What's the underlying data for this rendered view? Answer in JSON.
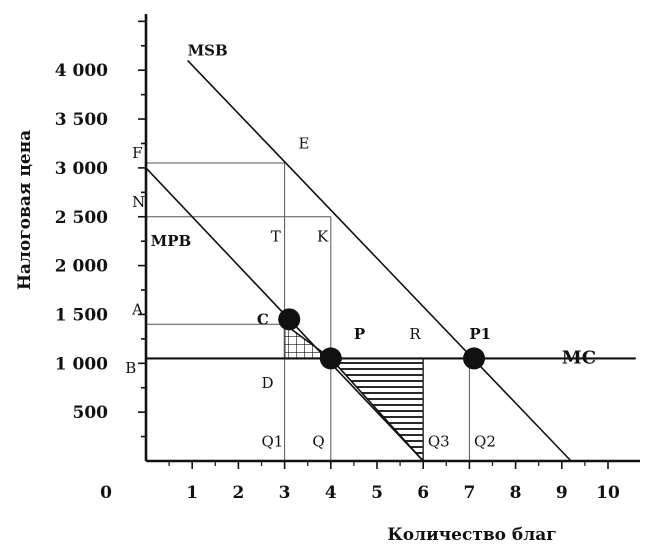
{
  "chart_data": {
    "type": "line",
    "xlabel": "Количество благ",
    "ylabel": "Налоговая цена",
    "origin_label": "0",
    "x_ticks": [
      "1",
      "2",
      "3",
      "4",
      "5",
      "6",
      "7",
      "8",
      "9",
      "10"
    ],
    "y_ticks": [
      {
        "value": 500,
        "label": "500"
      },
      {
        "value": 1000,
        "label": "1 000"
      },
      {
        "value": 1500,
        "label": "1 500"
      },
      {
        "value": 2000,
        "label": "2 000"
      },
      {
        "value": 2500,
        "label": "2 500"
      },
      {
        "value": 3000,
        "label": "3 000"
      },
      {
        "value": 3500,
        "label": "3 500"
      },
      {
        "value": 4000,
        "label": "4 000"
      }
    ],
    "xlim": [
      0,
      11
    ],
    "ylim": [
      0,
      5000
    ],
    "series": [
      {
        "name": "MSB",
        "x": [
          0.9,
          9.2
        ],
        "y": [
          4100,
          0
        ]
      },
      {
        "name": "MPB",
        "x": [
          0,
          6
        ],
        "y": [
          3000,
          0
        ]
      },
      {
        "name": "MC",
        "x": [
          0,
          10.6
        ],
        "y": [
          1050,
          1050
        ]
      }
    ],
    "price_lines": [
      {
        "y": 3050,
        "x_end": 3
      },
      {
        "y": 2500,
        "x_end": 4
      },
      {
        "y": 1400,
        "x_end": 3
      }
    ],
    "quantity_lines": [
      {
        "x": 3,
        "y_top": 3050
      },
      {
        "x": 4,
        "y_top": 2500
      },
      {
        "x": 6,
        "y_top": 1050
      },
      {
        "x": 7,
        "y_top": 1050
      }
    ],
    "markers": [
      {
        "x": 3.1,
        "y": 1450
      },
      {
        "x": 4,
        "y": 1050
      },
      {
        "x": 7.1,
        "y": 1050
      }
    ],
    "point_labels": [
      {
        "text": "F",
        "x": -0.3,
        "y": 3150
      },
      {
        "text": "N",
        "x": -0.3,
        "y": 2650
      },
      {
        "text": "E",
        "x": 3.3,
        "y": 3250
      },
      {
        "text": "T",
        "x": 2.7,
        "y": 2300
      },
      {
        "text": "K",
        "x": 3.7,
        "y": 2300
      },
      {
        "text": "A",
        "x": -0.3,
        "y": 1550
      },
      {
        "text": "C",
        "x": 2.4,
        "y": 1450
      },
      {
        "text": "P",
        "x": 4.5,
        "y": 1300
      },
      {
        "text": "R",
        "x": 5.7,
        "y": 1300
      },
      {
        "text": "P1",
        "x": 7,
        "y": 1300
      },
      {
        "text": "B",
        "x": -0.45,
        "y": 950
      },
      {
        "text": "D",
        "x": 2.5,
        "y": 800
      },
      {
        "text": "Q1",
        "x": 2.5,
        "y": 200
      },
      {
        "text": "Q",
        "x": 3.6,
        "y": 200
      },
      {
        "text": "Q3",
        "x": 6.1,
        "y": 200
      },
      {
        "text": "Q2",
        "x": 7.1,
        "y": 200
      },
      {
        "text": "MSB",
        "x": 0.9,
        "y": 4200
      },
      {
        "text": "MPB",
        "x": 0.1,
        "y": 2250
      },
      {
        "text": "MC",
        "x": 9,
        "y": 1050
      }
    ],
    "shaded_regions": [
      {
        "pattern": "grid",
        "points": [
          [
            3,
            1400
          ],
          [
            3,
            1050
          ],
          [
            4,
            1050
          ]
        ]
      },
      {
        "pattern": "hatch",
        "points": [
          [
            4,
            1050
          ],
          [
            6,
            1050
          ],
          [
            6,
            0
          ]
        ]
      }
    ],
    "grid": false,
    "legend": "none"
  }
}
